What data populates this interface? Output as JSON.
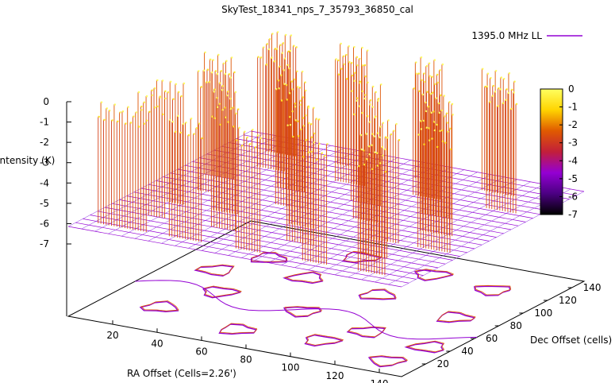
{
  "chart_data": {
    "type": "surface",
    "title": "SkyTest_18341_nps_7_35793_36850_cal",
    "xlabel": "RA Offset (Cells=2.26')",
    "ylabel": "Dec Offset (cells)",
    "zlabel": "Intensity (K)",
    "legend": "1395.0 MHz LL",
    "legend_color": "#9400d3",
    "x_ticks": [
      "20",
      "40",
      "60",
      "80",
      "100",
      "120",
      "140"
    ],
    "y_ticks": [
      "20",
      "40",
      "60",
      "80",
      "100",
      "120",
      "140"
    ],
    "z_ticks": [
      "0",
      "-1",
      "-2",
      "-3",
      "-4",
      "-5",
      "-6",
      "-7"
    ],
    "colorbar_ticks": [
      "0",
      "-1",
      "-2",
      "-3",
      "-4",
      "-5",
      "-6",
      "-7"
    ],
    "zlim": [
      -7,
      0
    ],
    "xlim": [
      0,
      150
    ],
    "ylim": [
      0,
      150
    ],
    "colormap": [
      "#000000",
      "#4b0082",
      "#9400d3",
      "#c21f3a",
      "#e05a00",
      "#ffd400",
      "#ffff60"
    ],
    "surface_floor": -6,
    "peak_level": 0,
    "bar_rows": [
      {
        "y": 10,
        "peaks": [
          [
            8,
            30
          ],
          [
            40,
            55
          ],
          [
            70,
            82
          ],
          [
            100,
            112
          ],
          [
            125,
            138
          ]
        ]
      },
      {
        "y": 30,
        "peaks": [
          [
            15,
            28
          ],
          [
            48,
            60
          ],
          [
            82,
            95
          ],
          [
            115,
            128
          ]
        ]
      },
      {
        "y": 50,
        "peaks": [
          [
            10,
            25
          ],
          [
            38,
            50
          ],
          [
            72,
            86
          ],
          [
            108,
            122
          ],
          [
            130,
            145
          ]
        ]
      },
      {
        "y": 70,
        "peaks": [
          [
            20,
            35
          ],
          [
            55,
            70
          ],
          [
            90,
            102
          ],
          [
            120,
            135
          ]
        ]
      },
      {
        "y": 90,
        "peaks": [
          [
            12,
            26
          ],
          [
            45,
            58
          ],
          [
            78,
            92
          ],
          [
            110,
            124
          ]
        ]
      },
      {
        "y": 110,
        "peaks": [
          [
            25,
            40
          ],
          [
            60,
            74
          ],
          [
            95,
            108
          ],
          [
            128,
            142
          ]
        ]
      },
      {
        "y": 130,
        "peaks": [
          [
            18,
            32
          ],
          [
            50,
            64
          ],
          [
            85,
            98
          ],
          [
            115,
            130
          ]
        ]
      }
    ],
    "contour_islands": [
      {
        "x": 30,
        "y": 110
      },
      {
        "x": 60,
        "y": 130
      },
      {
        "x": 95,
        "y": 125
      },
      {
        "x": 125,
        "y": 120
      },
      {
        "x": 20,
        "y": 85
      },
      {
        "x": 55,
        "y": 95
      },
      {
        "x": 90,
        "y": 90
      },
      {
        "x": 130,
        "y": 80
      },
      {
        "x": 35,
        "y": 60
      },
      {
        "x": 75,
        "y": 55
      },
      {
        "x": 110,
        "y": 45
      },
      {
        "x": 140,
        "y": 40
      },
      {
        "x": 25,
        "y": 30
      },
      {
        "x": 65,
        "y": 20
      },
      {
        "x": 100,
        "y": 25
      },
      {
        "x": 135,
        "y": 15
      }
    ],
    "grid": false,
    "legend_position": "top-right"
  }
}
